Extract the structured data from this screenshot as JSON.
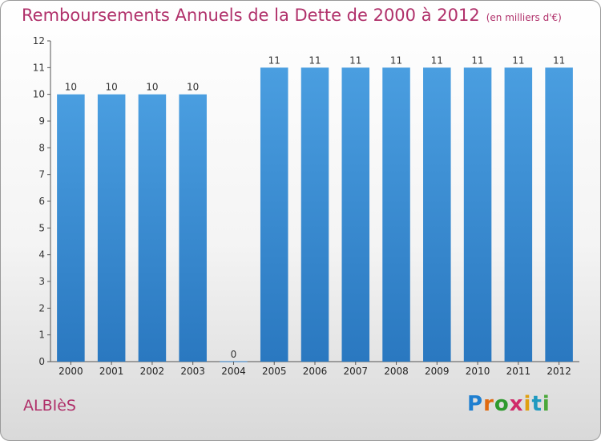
{
  "title": "Remboursements Annuels de la Dette de 2000 à 2012",
  "unit": "(en milliers d'€)",
  "town": "ALBIèS",
  "logo": {
    "letters": [
      "P",
      "r",
      "o",
      "x",
      "i",
      "t",
      "i"
    ],
    "colors": [
      "#1f7fd0",
      "#e06a10",
      "#2e9a2e",
      "#d02a6a",
      "#e0a010",
      "#1f9ac0",
      "#4aa83a"
    ]
  },
  "colors": {
    "bar": "#4a9ee0",
    "bar_dark": "#2a78c0",
    "title": "#b0306a"
  },
  "chart_data": {
    "type": "bar",
    "categories": [
      "2000",
      "2001",
      "2002",
      "2003",
      "2004",
      "2005",
      "2006",
      "2007",
      "2008",
      "2009",
      "2010",
      "2011",
      "2012"
    ],
    "values": [
      10,
      10,
      10,
      10,
      0,
      11,
      11,
      11,
      11,
      11,
      11,
      11,
      11
    ],
    "data_labels": [
      "10",
      "10",
      "10",
      "10",
      "0",
      "11",
      "11",
      "11",
      "11",
      "11",
      "11",
      "11",
      "11"
    ],
    "yticks": [
      "0",
      "1",
      "2",
      "3",
      "4",
      "5",
      "6",
      "7",
      "8",
      "9",
      "10",
      "11",
      "12"
    ],
    "ylim": [
      0,
      12
    ],
    "grid": false
  }
}
